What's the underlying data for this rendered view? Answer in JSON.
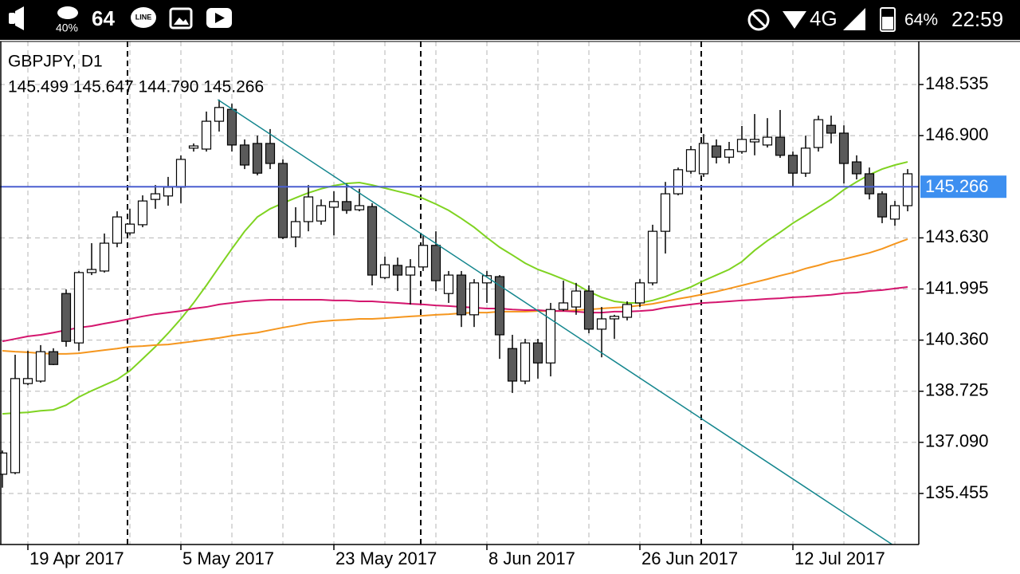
{
  "status_bar": {
    "weather_percent": "40%",
    "temperature": "64",
    "line_icon": "LINE",
    "network": "4G",
    "battery": "64%",
    "time": "22:59"
  },
  "chart_data": {
    "type": "candlestick",
    "title": "GBPJPY, D1",
    "subtitle": "145.499 145.647 144.790 145.266",
    "categories": [
      null,
      null,
      "19 Apr 2017",
      null,
      null,
      null,
      null,
      null,
      null,
      null,
      null,
      null,
      null,
      null,
      "5 May 2017",
      null,
      null,
      null,
      null,
      null,
      null,
      null,
      null,
      null,
      null,
      null,
      "23 May 2017",
      null,
      null,
      null,
      null,
      null,
      null,
      null,
      null,
      null,
      null,
      null,
      "8 Jun 2017",
      null,
      null,
      null,
      null,
      null,
      null,
      null,
      null,
      null,
      null,
      null,
      "26 Jun 2017",
      null,
      null,
      null,
      null,
      null,
      null,
      null,
      null,
      null,
      null,
      null,
      "12 Jul 2017",
      null,
      null,
      null,
      null,
      null,
      null,
      null,
      null,
      null
    ],
    "open": [
      136.07,
      136.12,
      138.97,
      139.05,
      139.99,
      141.85,
      140.27,
      142.52,
      142.57,
      143.46,
      143.79,
      144.05,
      144.86,
      144.97,
      145.25,
      146.5,
      146.47,
      147.36,
      147.74,
      146.6,
      146.65,
      146.65,
      146.01,
      143.66,
      144.15,
      144.17,
      144.61,
      144.79,
      144.53,
      144.63,
      142.36,
      142.75,
      142.44,
      142.7,
      143.39,
      141.85,
      142.44,
      141.17,
      142.19,
      142.39,
      140.09,
      139.05,
      140.27,
      139.63,
      141.34,
      141.42,
      141.93,
      140.71,
      141.04,
      141.09,
      141.55,
      142.19,
      143.84,
      145.04,
      145.76,
      145.68,
      146.57,
      146.21,
      146.39,
      146.7,
      146.6,
      146.85,
      146.27,
      145.7,
      146.52,
      147.23,
      146.98,
      146.06,
      145.68,
      145.04,
      144.23,
      144.66
    ],
    "high": [
      136.83,
      139.89,
      140.02,
      140.2,
      140.1,
      141.98,
      142.57,
      143.46,
      143.77,
      144.48,
      144.56,
      144.99,
      145.32,
      145.58,
      146.27,
      146.65,
      147.67,
      148.05,
      147.92,
      146.78,
      146.9,
      147.11,
      146.14,
      144.61,
      145.32,
      144.86,
      145.12,
      145.37,
      145.2,
      144.74,
      143.03,
      143.0,
      142.95,
      143.71,
      143.84,
      142.57,
      142.57,
      142.31,
      142.57,
      142.44,
      140.53,
      140.4,
      140.4,
      141.55,
      142.26,
      142.19,
      142.11,
      141.42,
      141.17,
      141.6,
      142.31,
      144.05,
      145.42,
      145.88,
      146.57,
      146.95,
      146.78,
      146.7,
      147.21,
      147.59,
      147.46,
      147.72,
      146.39,
      146.9,
      147.54,
      147.54,
      147.23,
      146.27,
      145.88,
      145.12,
      144.81,
      145.83
    ],
    "low": [
      135.64,
      136.07,
      138.92,
      139.0,
      139.56,
      140.15,
      140.02,
      142.44,
      142.52,
      143.33,
      143.71,
      143.97,
      144.56,
      144.66,
      144.74,
      146.39,
      146.39,
      147.03,
      146.39,
      145.83,
      145.63,
      145.83,
      143.59,
      143.33,
      143.84,
      144.05,
      143.71,
      144.4,
      144.48,
      142.11,
      142.31,
      141.93,
      141.5,
      142.57,
      141.93,
      141.55,
      140.78,
      140.78,
      141.55,
      139.76,
      138.67,
      138.95,
      139.13,
      139.2,
      141.29,
      141.17,
      140.58,
      139.81,
      140.4,
      140.99,
      141.42,
      142.11,
      143.13,
      144.99,
      145.68,
      145.58,
      146.01,
      146.01,
      146.32,
      146.27,
      146.52,
      146.19,
      145.25,
      145.58,
      146.39,
      146.65,
      145.37,
      145.5,
      144.86,
      144.1,
      144.02,
      144.48
    ],
    "close": [
      136.75,
      139.13,
      139.13,
      139.99,
      139.58,
      140.32,
      142.52,
      142.62,
      143.46,
      144.3,
      144.07,
      144.81,
      145.04,
      145.25,
      146.14,
      146.57,
      147.36,
      147.8,
      146.6,
      145.96,
      145.7,
      146.01,
      143.64,
      144.15,
      144.94,
      144.66,
      144.79,
      144.51,
      144.66,
      142.44,
      142.77,
      142.44,
      142.7,
      143.39,
      142.26,
      142.44,
      141.17,
      142.19,
      142.42,
      140.53,
      139.05,
      140.27,
      139.63,
      141.34,
      141.55,
      141.93,
      140.71,
      141.04,
      141.12,
      141.5,
      142.19,
      143.84,
      145.04,
      145.81,
      146.45,
      146.65,
      146.21,
      146.45,
      146.78,
      146.78,
      146.85,
      146.27,
      145.7,
      146.5,
      147.41,
      146.98,
      146.01,
      145.68,
      145.04,
      144.3,
      144.66,
      145.68
    ],
    "up_color": "#ffffff",
    "down_color": "#5a5a5a",
    "wick_color": "#000000",
    "overlays": [
      {
        "color": "#7fd321",
        "values": [
          138.0,
          138.03,
          138.05,
          138.1,
          138.13,
          138.28,
          138.54,
          138.74,
          138.92,
          139.1,
          139.38,
          139.76,
          140.15,
          140.58,
          141.04,
          141.55,
          142.11,
          142.7,
          143.28,
          143.84,
          144.3,
          144.56,
          144.74,
          144.91,
          145.07,
          145.2,
          145.3,
          145.37,
          145.4,
          145.32,
          145.22,
          145.12,
          145.02,
          144.89,
          144.71,
          144.51,
          144.25,
          143.97,
          143.64,
          143.33,
          143.08,
          142.82,
          142.62,
          142.47,
          142.31,
          142.14,
          141.91,
          141.73,
          141.6,
          141.55,
          141.55,
          141.63,
          141.75,
          141.91,
          142.06,
          142.26,
          142.44,
          142.62,
          142.87,
          143.23,
          143.54,
          143.81,
          144.1,
          144.35,
          144.61,
          144.86,
          145.17,
          145.42,
          145.65,
          145.83,
          145.96,
          146.06
        ]
      },
      {
        "color": "#f5961e",
        "values": [
          140.02,
          139.99,
          139.97,
          139.94,
          139.92,
          139.92,
          139.94,
          139.99,
          140.04,
          140.09,
          140.15,
          140.17,
          140.2,
          140.22,
          140.27,
          140.32,
          140.38,
          140.43,
          140.5,
          140.55,
          140.6,
          140.68,
          140.76,
          140.83,
          140.91,
          140.96,
          140.99,
          141.01,
          141.04,
          141.04,
          141.06,
          141.09,
          141.12,
          141.14,
          141.17,
          141.19,
          141.22,
          141.24,
          141.24,
          141.27,
          141.27,
          141.27,
          141.29,
          141.29,
          141.29,
          141.32,
          141.34,
          141.37,
          141.4,
          141.42,
          141.47,
          141.52,
          141.6,
          141.68,
          141.75,
          141.83,
          141.91,
          142.01,
          142.11,
          142.21,
          142.31,
          142.42,
          142.52,
          142.65,
          142.75,
          142.87,
          142.95,
          143.05,
          143.15,
          143.28,
          143.44,
          143.59
        ]
      },
      {
        "color": "#d4166e",
        "values": [
          140.32,
          140.4,
          140.48,
          140.53,
          140.6,
          140.68,
          140.76,
          140.81,
          140.89,
          140.96,
          141.04,
          141.12,
          141.19,
          141.24,
          141.29,
          141.37,
          141.42,
          141.5,
          141.55,
          141.6,
          141.63,
          141.65,
          141.65,
          141.65,
          141.65,
          141.65,
          141.63,
          141.63,
          141.6,
          141.6,
          141.57,
          141.55,
          141.52,
          141.5,
          141.47,
          141.45,
          141.42,
          141.4,
          141.37,
          141.37,
          141.34,
          141.32,
          141.32,
          141.29,
          141.29,
          141.27,
          141.24,
          141.24,
          141.27,
          141.27,
          141.29,
          141.32,
          141.4,
          141.45,
          141.5,
          141.55,
          141.57,
          141.6,
          141.63,
          141.65,
          141.68,
          141.7,
          141.73,
          141.75,
          141.78,
          141.81,
          141.86,
          141.88,
          141.93,
          141.96,
          142.01,
          142.06
        ]
      }
    ],
    "trendline": {
      "color": "#14868e",
      "values": [
        148.05,
        133.82
      ]
    },
    "price_line": 145.266,
    "price_line_color": "#4a5fd0",
    "price_label_color": "#3d8ff0",
    "ylim": [
      133.823,
      149.912
    ],
    "yticks": [
      135.455,
      {
        "value": 137.09,
        "label": "137.090"
      },
      138.725,
      {
        "value": 140.36,
        "label": "140.360"
      },
      141.995,
      {
        "value": 143.63,
        "label": "143.630"
      },
      {
        "value": 146.9,
        "label": "146.900"
      },
      148.535
    ],
    "grid": true
  }
}
